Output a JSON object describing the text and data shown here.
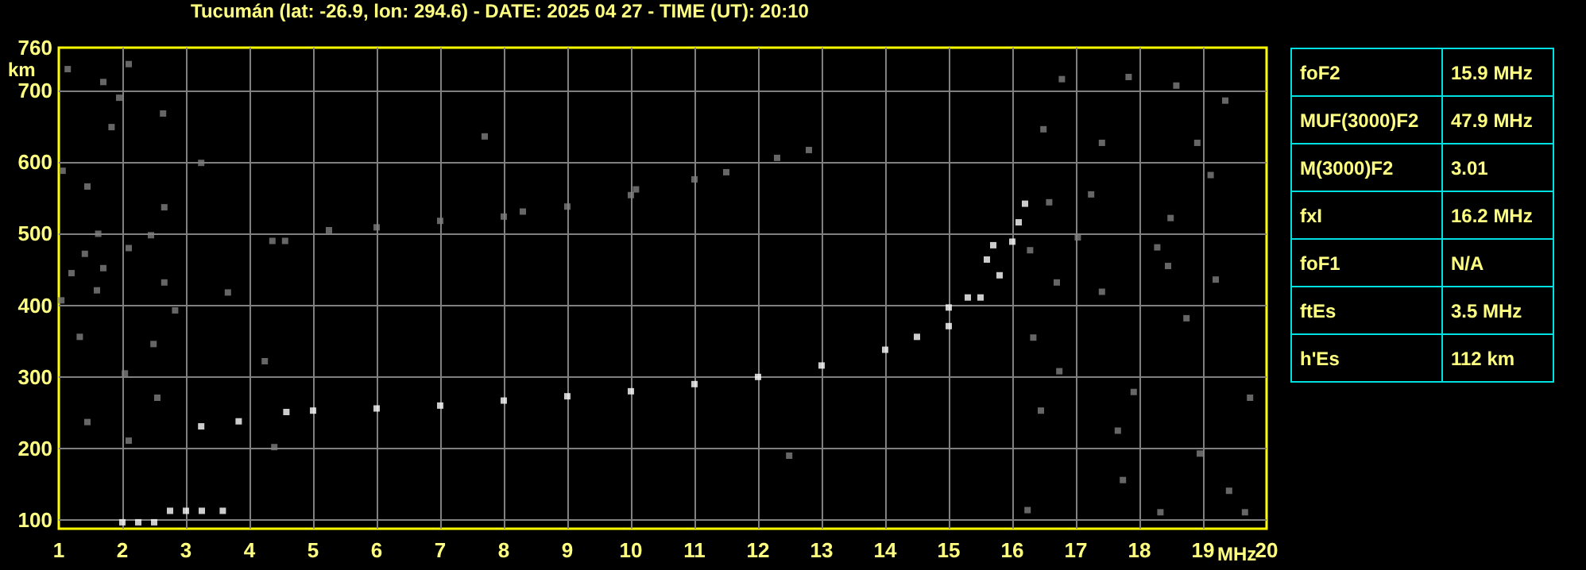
{
  "chart_data": [
    {
      "type": "scatter",
      "title": "Tucumán (lat: -26.9, lon: 294.6) - DATE: 2025 04 27 - TIME (UT): 20:10",
      "xlabel": "MHz",
      "ylabel": "km",
      "xlim": [
        1,
        20
      ],
      "ylim": [
        88,
        760
      ],
      "xticks": [
        1,
        2,
        3,
        4,
        5,
        6,
        7,
        8,
        9,
        10,
        11,
        12,
        13,
        14,
        15,
        16,
        17,
        18,
        19,
        20
      ],
      "yticks": [
        100,
        200,
        300,
        400,
        500,
        600,
        700,
        760
      ],
      "grid": true,
      "marker": "square",
      "series": [
        {
          "color": "#ffffff",
          "x": [
            3.24,
            3.83,
            4.58,
            5,
            6,
            7,
            8,
            9,
            10,
            11,
            12,
            13,
            14,
            14.5,
            15,
            15.3,
            15.6,
            15.7
          ],
          "values": [
            231,
            238,
            251,
            253,
            256,
            260,
            267,
            273,
            280,
            290,
            300,
            316,
            338,
            356,
            397,
            411,
            464,
            484
          ]
        },
        {
          "color": "#ffffff",
          "x": [
            15,
            15.5,
            15.8,
            16,
            16.1,
            16.2
          ],
          "values": [
            371,
            411,
            442,
            489,
            516,
            542
          ]
        },
        {
          "color": "#ffffff",
          "x": [
            2,
            2.25,
            2.5,
            2.75,
            3,
            3.25,
            3.58
          ],
          "values": [
            97,
            97,
            97,
            113,
            113,
            113,
            113
          ]
        },
        {
          "color": "#808080",
          "x": [
            5.25,
            6,
            7,
            8,
            8.3,
            9,
            10,
            10.08,
            11,
            11.5,
            12.3,
            12.8
          ],
          "values": [
            505,
            509,
            518,
            524,
            531,
            538,
            554,
            562,
            576,
            586,
            606,
            617
          ]
        },
        {
          "color": "#808080",
          "x": [
            1.2,
            1.14,
            1.7,
            1.95,
            1.83,
            2.1,
            2.64,
            1.06,
            1.45,
            3.24,
            2.66,
            1.62,
            2.45,
            1.41,
            2.1,
            1.7,
            2.66,
            3.66,
            1.04,
            1.6,
            2.83,
            1.33,
            2.49,
            2.04,
            4.24,
            1.45,
            2.1,
            4.39,
            2.55,
            7.7,
            4.36,
            4.56,
            16.78,
            17.83,
            18.58,
            19.35,
            16.49,
            17.41,
            18.91,
            19.12,
            17.24,
            18.49,
            16.58,
            17.03,
            16.28,
            18.28,
            16.7,
            18.45,
            17.41,
            19.2,
            18.74,
            16.33,
            16.74,
            17.91,
            19.74,
            16.45,
            17.66,
            18.95,
            12.49,
            17.74,
            19.41,
            19.66,
            16.24,
            18.33
          ],
          "values": [
            445,
            730,
            712,
            690,
            649,
            737,
            668,
            588,
            566,
            599,
            537,
            500,
            498,
            472,
            480,
            452,
            432,
            418,
            407,
            421,
            393,
            356,
            346,
            305,
            322,
            237,
            211,
            202,
            271,
            636,
            490,
            490,
            716,
            719,
            707,
            686,
            646,
            627,
            627,
            582,
            555,
            522,
            544,
            495,
            477,
            481,
            432,
            455,
            419,
            436,
            382,
            355,
            308,
            279,
            271,
            253,
            225,
            193,
            190,
            156,
            141,
            111,
            114,
            111
          ]
        }
      ]
    },
    {
      "type": "other",
      "annotations": [
        "foF2",
        "15.9 MHz",
        "MUF(3000)F2",
        "47.9 MHz",
        "M(3000)F2",
        "3.01",
        "fxI",
        "16.2 MHz",
        "foF1",
        "N/A",
        "ftEs",
        "3.5 MHz",
        "h'Es",
        "112 km"
      ]
    }
  ]
}
